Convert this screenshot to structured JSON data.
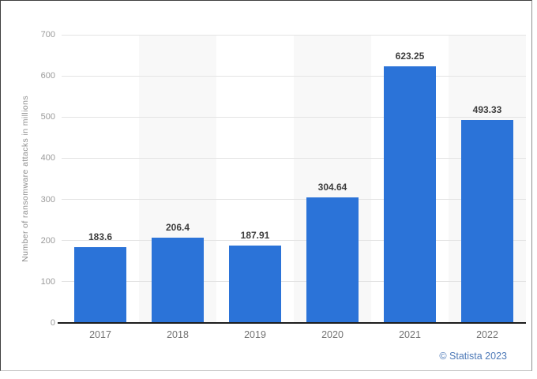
{
  "chart_data": {
    "type": "bar",
    "title": "",
    "xlabel": "",
    "ylabel": "Number of ransomware attacks in millions",
    "categories": [
      "2017",
      "2018",
      "2019",
      "2020",
      "2021",
      "2022"
    ],
    "values": [
      183.6,
      206.4,
      187.91,
      304.64,
      623.25,
      493.33
    ],
    "value_labels": [
      "183.6",
      "206.4",
      "187.91",
      "304.64",
      "623.25",
      "493.33"
    ],
    "ylim": [
      0,
      700
    ],
    "yticks": [
      0,
      100,
      200,
      300,
      400,
      500,
      600,
      700
    ],
    "grid": true,
    "legend": "none",
    "bar_color": "#2b73d8",
    "band_color": "#f8f8f8",
    "shaded_columns": [
      1,
      3,
      5
    ]
  },
  "footer": {
    "credit": "© Statista 2023"
  },
  "colors": {
    "bar": "#2b73d8",
    "band": "#f8f8f8",
    "gridline": "#e4e4e4",
    "baseline": "#1d1d1d",
    "value_label": "#3d3d3d",
    "axis_label": "#737373",
    "tick_label": "#9a9a9a",
    "credit": "#4e7ab8"
  }
}
